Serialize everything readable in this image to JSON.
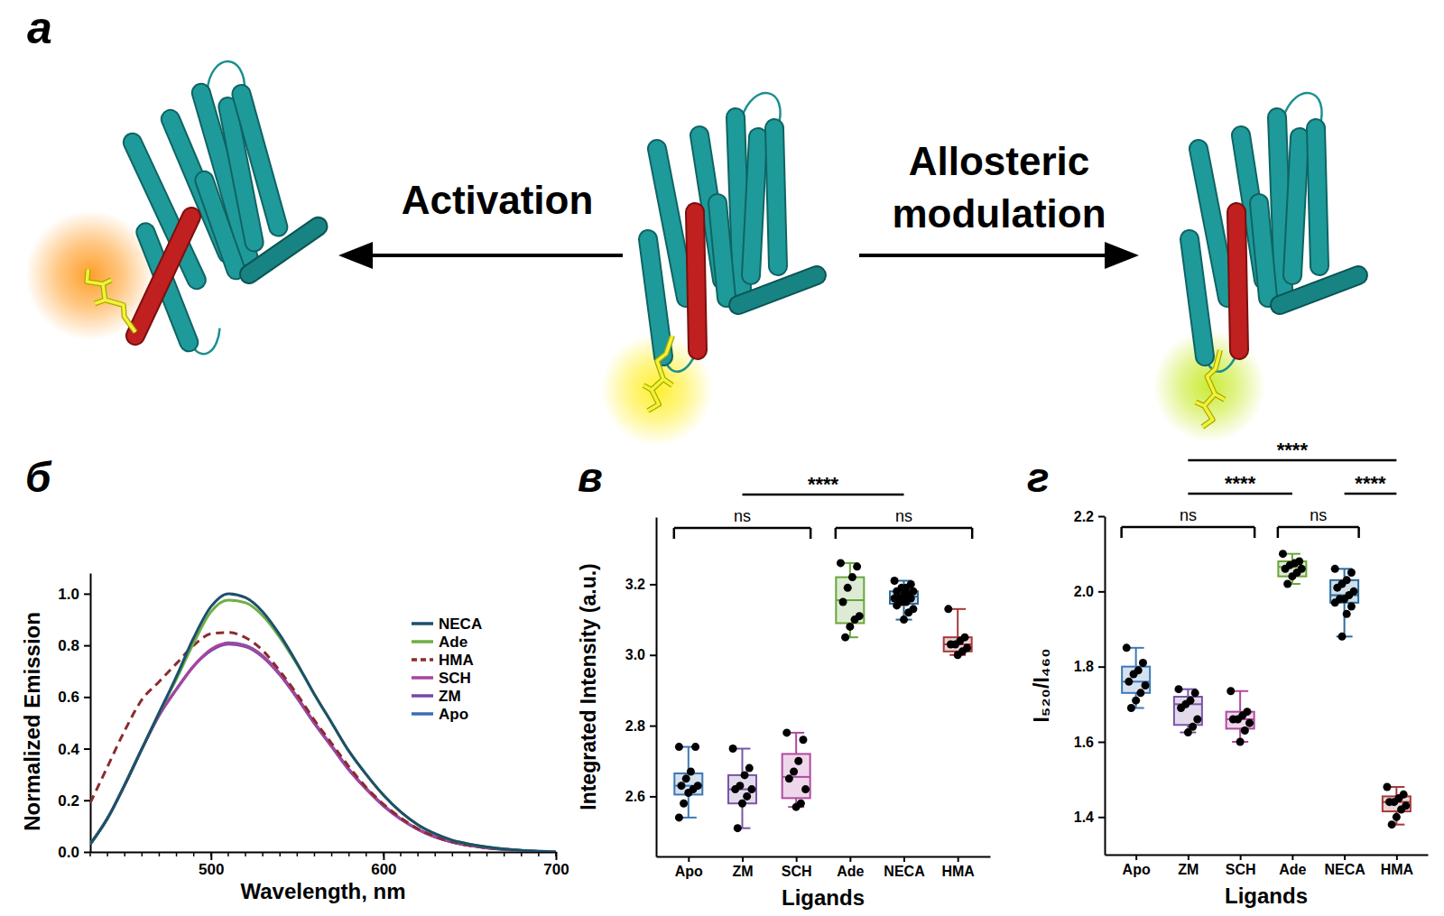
{
  "diagram": {
    "panel": "а",
    "left_arrow": "Activation",
    "right_arrow": "Allosteric modulation"
  },
  "chart_data": [
    {
      "type": "line",
      "title": "б",
      "x": [
        430,
        440,
        450,
        460,
        470,
        480,
        490,
        500,
        510,
        520,
        530,
        540,
        550,
        560,
        570,
        580,
        590,
        600,
        610,
        620,
        630,
        640,
        650,
        660,
        670,
        680,
        690,
        700
      ],
      "series": [
        {
          "name": "NECA",
          "color": "#1d4f6e",
          "line_style": "solid",
          "values": [
            0.03,
            0.13,
            0.26,
            0.4,
            0.54,
            0.68,
            0.83,
            0.95,
            1.0,
            0.985,
            0.93,
            0.84,
            0.73,
            0.61,
            0.5,
            0.39,
            0.3,
            0.22,
            0.155,
            0.105,
            0.07,
            0.045,
            0.03,
            0.019,
            0.011,
            0.006,
            0.003,
            0.0
          ]
        },
        {
          "name": "Ade",
          "color": "#6fae45",
          "line_style": "solid",
          "values": [
            0.03,
            0.13,
            0.26,
            0.4,
            0.54,
            0.67,
            0.81,
            0.93,
            0.975,
            0.965,
            0.915,
            0.83,
            0.725,
            0.61,
            0.5,
            0.39,
            0.3,
            0.22,
            0.155,
            0.105,
            0.07,
            0.045,
            0.03,
            0.019,
            0.011,
            0.006,
            0.003,
            0.0
          ]
        },
        {
          "name": "HMA",
          "color": "#8b2b2b",
          "line_style": "dashed",
          "values": [
            0.19,
            0.33,
            0.47,
            0.59,
            0.66,
            0.73,
            0.8,
            0.845,
            0.85,
            0.83,
            0.78,
            0.7,
            0.61,
            0.51,
            0.42,
            0.33,
            0.25,
            0.185,
            0.132,
            0.09,
            0.06,
            0.039,
            0.025,
            0.016,
            0.01,
            0.005,
            0.002,
            0.0
          ]
        },
        {
          "name": "SCH",
          "color": "#a8449e",
          "line_style": "solid",
          "values": [
            0.03,
            0.13,
            0.26,
            0.4,
            0.53,
            0.63,
            0.72,
            0.785,
            0.808,
            0.798,
            0.758,
            0.688,
            0.598,
            0.5,
            0.41,
            0.32,
            0.245,
            0.18,
            0.128,
            0.088,
            0.058,
            0.038,
            0.025,
            0.016,
            0.01,
            0.005,
            0.002,
            0.0
          ]
        },
        {
          "name": "ZM",
          "color": "#7447a8",
          "line_style": "solid",
          "values": [
            0.03,
            0.13,
            0.26,
            0.4,
            0.53,
            0.63,
            0.72,
            0.78,
            0.805,
            0.795,
            0.755,
            0.685,
            0.595,
            0.497,
            0.407,
            0.317,
            0.243,
            0.178,
            0.127,
            0.087,
            0.057,
            0.037,
            0.024,
            0.015,
            0.009,
            0.005,
            0.002,
            0.0
          ]
        },
        {
          "name": "Apo",
          "color": "#3b6db3",
          "line_style": "solid",
          "values": [
            0.03,
            0.13,
            0.26,
            0.4,
            0.53,
            0.63,
            0.72,
            0.78,
            0.81,
            0.8,
            0.76,
            0.69,
            0.6,
            0.5,
            0.41,
            0.32,
            0.245,
            0.18,
            0.128,
            0.088,
            0.058,
            0.038,
            0.025,
            0.016,
            0.01,
            0.005,
            0.002,
            0.0
          ]
        }
      ],
      "xlabel": "Wavelength, nm",
      "ylabel": "Normalized Emission",
      "xlim": [
        430,
        700
      ],
      "xticks": [
        500,
        600,
        700
      ],
      "ylim": [
        0,
        1.08
      ],
      "yticks": [
        {
          "value": 0,
          "label": "0.0"
        },
        0.2,
        0.4,
        0.6,
        0.8,
        {
          "value": 1,
          "label": "1.0"
        }
      ],
      "legend": "top-right"
    },
    {
      "type": "box",
      "title": "в",
      "categories": [
        "Apo",
        "ZM",
        "SCH",
        "Ade",
        "NECA",
        "HMA"
      ],
      "colors": [
        "#3f78b5",
        "#7a55a6",
        "#b04a9e",
        "#68a63a",
        "#2b6c9e",
        "#a53b3b"
      ],
      "values": [
        [
          2.74,
          2.74,
          2.67,
          2.65,
          2.63,
          2.63,
          2.62,
          2.61,
          2.58,
          2.54
        ],
        [
          2.735,
          2.68,
          2.66,
          2.63,
          2.62,
          2.62,
          2.6,
          2.58,
          2.51
        ],
        [
          2.78,
          2.76,
          2.7,
          2.67,
          2.65,
          2.62,
          2.58,
          2.57
        ],
        [
          3.26,
          3.25,
          3.22,
          3.19,
          3.15,
          3.11,
          3.1,
          3.08,
          3.05
        ],
        [
          3.21,
          3.2,
          3.19,
          3.19,
          3.18,
          3.18,
          3.17,
          3.17,
          3.16,
          3.16,
          3.16,
          3.15,
          3.15,
          3.14,
          3.13,
          3.12,
          3.1
        ],
        [
          3.13,
          3.05,
          3.04,
          3.03,
          3.03,
          3.02,
          3.01,
          3.0
        ]
      ],
      "whisker_low": [
        2.54,
        2.51,
        2.57,
        3.05,
        3.1,
        3.0
      ],
      "q1": [
        2.605,
        2.58,
        2.595,
        3.09,
        3.145,
        3.01
      ],
      "median": [
        2.63,
        2.62,
        2.655,
        3.155,
        3.165,
        3.03
      ],
      "q3": [
        2.665,
        2.66,
        2.72,
        3.22,
        3.18,
        3.05
      ],
      "whisker_high": [
        2.74,
        2.735,
        2.78,
        3.26,
        3.21,
        3.13
      ],
      "xlabel": "Ligands",
      "ylabel": "Integrated Intensity (a.u.)",
      "ylim": [
        2.43,
        3.39
      ],
      "yticks": [
        2.6,
        2.8,
        {
          "value": 3,
          "label": "3.0"
        },
        3.2
      ],
      "annotations": [
        {
          "text": "ns",
          "from": 0,
          "to": 2
        },
        {
          "text": "ns",
          "from": 3,
          "to": 5
        },
        {
          "text": "****",
          "from": 1,
          "to": 4
        }
      ]
    },
    {
      "type": "box",
      "title": "г",
      "categories": [
        "Apo",
        "ZM",
        "SCH",
        "Ade",
        "NECA",
        "HMA"
      ],
      "colors": [
        "#3f78b5",
        "#7a55a6",
        "#b04a9e",
        "#68a63a",
        "#2b6c9e",
        "#a53b3b"
      ],
      "values": [
        [
          1.85,
          1.81,
          1.79,
          1.78,
          1.76,
          1.75,
          1.73,
          1.71,
          1.69
        ],
        [
          1.74,
          1.73,
          1.71,
          1.7,
          1.69,
          1.66,
          1.64,
          1.625
        ],
        [
          1.735,
          1.68,
          1.67,
          1.66,
          1.66,
          1.65,
          1.63,
          1.6
        ],
        [
          2.1,
          2.08,
          2.075,
          2.07,
          2.06,
          2.06,
          2.05,
          2.04,
          2.02
        ],
        [
          2.06,
          2.05,
          2.03,
          2.02,
          2.01,
          2.0,
          1.99,
          1.98,
          1.98,
          1.97,
          1.96,
          1.94,
          1.88
        ],
        [
          1.48,
          1.46,
          1.45,
          1.44,
          1.44,
          1.43,
          1.42,
          1.4,
          1.38
        ]
      ],
      "whisker_low": [
        1.69,
        1.625,
        1.6,
        2.02,
        1.88,
        1.38
      ],
      "q1": [
        1.73,
        1.645,
        1.635,
        2.04,
        1.97,
        1.415
      ],
      "median": [
        1.76,
        1.7,
        1.66,
        2.065,
        1.99,
        1.44
      ],
      "q3": [
        1.8,
        1.72,
        1.68,
        2.08,
        2.03,
        1.455
      ],
      "whisker_high": [
        1.85,
        1.74,
        1.735,
        2.1,
        2.06,
        1.48
      ],
      "xlabel": "Ligands",
      "ylabel": "I₅₂₀/I₄₆₀",
      "ylim": [
        1.3,
        2.2
      ],
      "yticks": [
        1.4,
        1.6,
        1.8,
        {
          "value": 2,
          "label": "2.0"
        },
        2.2
      ],
      "annotations": [
        {
          "text": "ns",
          "from": 0,
          "to": 2
        },
        {
          "text": "ns",
          "from": 3,
          "to": 4
        },
        {
          "text": "****",
          "from": 1,
          "to": 3
        },
        {
          "text": "****",
          "from": 4,
          "to": 5
        },
        {
          "text": "****",
          "from": 1,
          "to": 5
        }
      ]
    }
  ]
}
